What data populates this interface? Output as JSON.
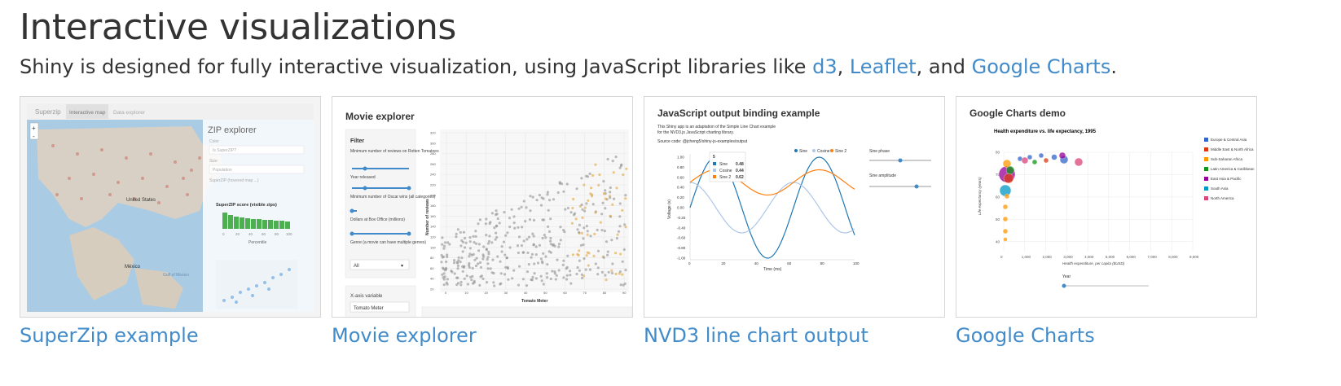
{
  "heading": "Interactive visualizations",
  "intro": {
    "before": "Shiny is designed for fully interactive visualization, using JavaScript libraries like ",
    "link1": "d3",
    "sep1": ", ",
    "link2": "Leaflet",
    "sep2": ", and ",
    "link3": "Google Charts",
    "after": "."
  },
  "colors": {
    "link": "#428bca",
    "heading": "#333333"
  },
  "cards": [
    {
      "caption": "SuperZip example",
      "tabs": [
        "Superzip",
        "Interactive map",
        "Data explorer"
      ],
      "panel_title": "ZIP explorer",
      "panel_fields": [
        "Color",
        "Is SuperZIP?",
        "Size",
        "Population",
        "SuperZIP (hovered map ...)"
      ],
      "hist_title": "SuperZIP score (visible zips)",
      "hist_xlabel": "Percentile",
      "hist_ticks": [
        "0",
        "20",
        "40",
        "60",
        "80",
        "100"
      ],
      "map_labels": [
        "United States",
        "México",
        "Gulf of Mexico"
      ],
      "zoom_in": "+",
      "zoom_out": "-"
    },
    {
      "caption": "Movie explorer",
      "title": "Movie explorer",
      "filter_title": "Filter",
      "filters": [
        "Minimum number of reviews on Rotten Tomatoes",
        "Year released",
        "Minimum number of Oscar wins (all categories)",
        "Dollars at Box Office (millions)",
        "Genre (a movie can have multiple genres)"
      ],
      "genre_value": "All",
      "xvar_label": "X-axis variable",
      "xvar_value": "Tomato Meter",
      "xlabel": "Tomato Meter",
      "ylabel": "Number of reviews",
      "xticks": [
        "0",
        "10",
        "20",
        "30",
        "40",
        "50",
        "60",
        "70",
        "80",
        "90"
      ],
      "yticks": [
        "320",
        "300",
        "280",
        "260",
        "240",
        "220",
        "200",
        "180",
        "160",
        "140",
        "120",
        "100",
        "80",
        "60",
        "40",
        "20"
      ]
    },
    {
      "caption": "NVD3 line chart output",
      "title": "JavaScript output binding example",
      "desc1": "This Shiny app is an adaptation of the Simple Line Chart example",
      "desc2": "for the NVD3.js JavaScript charting library.",
      "source": "Source code: @jcheng5/shiny-js-examples/output",
      "legend": [
        "Sine",
        "Cosine",
        "Sine 2"
      ],
      "tooltip_x": "5",
      "tooltip": [
        {
          "name": "Sine",
          "value": "0.48"
        },
        {
          "name": "Cosine",
          "value": "0.44"
        },
        {
          "name": "Sine 2",
          "value": "0.62"
        }
      ],
      "ylabel": "Voltage (v)",
      "xlabel": "Time (ms)",
      "yticks": [
        "1.00",
        "0.80",
        "0.60",
        "0.40",
        "0.20",
        "0.00",
        "-0.20",
        "-0.40",
        "-0.60",
        "-0.80",
        "-1.00"
      ],
      "xticks": [
        "0",
        "20",
        "40",
        "60",
        "80",
        "100"
      ],
      "sliders": [
        "Sine phase",
        "Sine amplitude"
      ],
      "series_colors": [
        "#1f77b4",
        "#aec7e8",
        "#ff7f0e"
      ]
    },
    {
      "caption": "Google Charts",
      "title": "Google Charts demo",
      "chart_title": "Health expenditure vs. life expectancy, 1995",
      "xlabel": "Health expenditure, per capita ($USD)",
      "ylabel": "Life expectancy (years)",
      "xticks": [
        "0",
        "1,000",
        "2,000",
        "3,000",
        "4,000",
        "5,000",
        "6,000",
        "7,000",
        "8,000",
        "9,000"
      ],
      "yticks": [
        "80",
        "70",
        "60",
        "50",
        "40"
      ],
      "slider_label": "Year",
      "legend": [
        {
          "name": "Europe & Central Asia",
          "color": "#3366cc"
        },
        {
          "name": "Middle East & North Africa",
          "color": "#dc3912"
        },
        {
          "name": "Sub-Saharan Africa",
          "color": "#ff9900"
        },
        {
          "name": "Latin America & Caribbean",
          "color": "#109618"
        },
        {
          "name": "East Asia & Pacific",
          "color": "#990099"
        },
        {
          "name": "South Asia",
          "color": "#0099c6"
        },
        {
          "name": "North America",
          "color": "#dd4477"
        }
      ]
    }
  ]
}
